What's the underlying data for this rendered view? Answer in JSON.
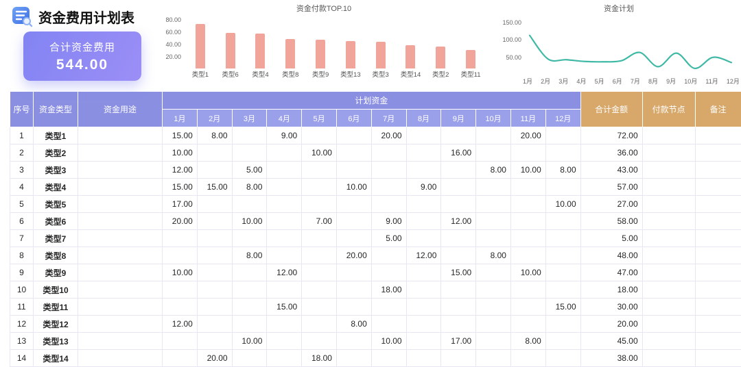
{
  "page": {
    "title": "资金费用计划表"
  },
  "summary_card": {
    "label": "合计资金费用",
    "value": "544.00"
  },
  "colors": {
    "bar": "#f0a49a",
    "line": "#3fb9a5",
    "header_purple": "#8a8fe2",
    "header_month": "#9ba0ea",
    "header_tan": "#d7a86a",
    "card_gradient_start": "#8284f3",
    "card_gradient_end": "#9c8ef6"
  },
  "chart_data": [
    {
      "type": "bar",
      "title": "资金付款TOP.10",
      "categories": [
        "类型1",
        "类型6",
        "类型4",
        "类型8",
        "类型9",
        "类型13",
        "类型3",
        "类型14",
        "类型2",
        "类型11"
      ],
      "values": [
        72,
        58,
        57,
        48,
        47,
        45,
        43,
        38,
        36,
        30
      ],
      "y_ticks": [
        "80.00",
        "60.00",
        "40.00",
        "20.00"
      ],
      "ylim": [
        0,
        80
      ],
      "xlabel": "",
      "ylabel": "",
      "legend": "none",
      "grid": false
    },
    {
      "type": "line",
      "title": "资金计划",
      "x": [
        "1月",
        "2月",
        "3月",
        "4月",
        "5月",
        "6月",
        "7月",
        "8月",
        "9月",
        "10月",
        "11月",
        "12月"
      ],
      "values": [
        111,
        43,
        41,
        36,
        35,
        38,
        62,
        21,
        60,
        16,
        48,
        33
      ],
      "y_ticks": [
        "150.00",
        "100.00",
        "50.00"
      ],
      "ylim": [
        0,
        150
      ],
      "xlabel": "",
      "ylabel": "",
      "legend": "none",
      "grid": false
    }
  ],
  "table": {
    "header": {
      "no": "序号",
      "type": "资金类型",
      "purpose": "资金用途",
      "plan_group": "计划资金",
      "months": [
        "1月",
        "2月",
        "3月",
        "4月",
        "5月",
        "6月",
        "7月",
        "8月",
        "9月",
        "10月",
        "11月",
        "12月"
      ],
      "total": "合计金额",
      "node": "付款节点",
      "note": "备注"
    },
    "rows": [
      {
        "no": "1",
        "type": "类型1",
        "purpose": "",
        "months": [
          "15.00",
          "8.00",
          "",
          "9.00",
          "",
          "",
          "20.00",
          "",
          "",
          "",
          "20.00",
          ""
        ],
        "total": "72.00",
        "node": "",
        "note": ""
      },
      {
        "no": "2",
        "type": "类型2",
        "purpose": "",
        "months": [
          "10.00",
          "",
          "",
          "",
          "10.00",
          "",
          "",
          "",
          "16.00",
          "",
          "",
          ""
        ],
        "total": "36.00",
        "node": "",
        "note": ""
      },
      {
        "no": "3",
        "type": "类型3",
        "purpose": "",
        "months": [
          "12.00",
          "",
          "5.00",
          "",
          "",
          "",
          "",
          "",
          "",
          "8.00",
          "10.00",
          "8.00"
        ],
        "total": "43.00",
        "node": "",
        "note": ""
      },
      {
        "no": "4",
        "type": "类型4",
        "purpose": "",
        "months": [
          "15.00",
          "15.00",
          "8.00",
          "",
          "",
          "10.00",
          "",
          "9.00",
          "",
          "",
          "",
          ""
        ],
        "total": "57.00",
        "node": "",
        "note": ""
      },
      {
        "no": "5",
        "type": "类型5",
        "purpose": "",
        "months": [
          "17.00",
          "",
          "",
          "",
          "",
          "",
          "",
          "",
          "",
          "",
          "",
          "10.00"
        ],
        "total": "27.00",
        "node": "",
        "note": ""
      },
      {
        "no": "6",
        "type": "类型6",
        "purpose": "",
        "months": [
          "20.00",
          "",
          "10.00",
          "",
          "7.00",
          "",
          "9.00",
          "",
          "12.00",
          "",
          "",
          ""
        ],
        "total": "58.00",
        "node": "",
        "note": ""
      },
      {
        "no": "7",
        "type": "类型7",
        "purpose": "",
        "months": [
          "",
          "",
          "",
          "",
          "",
          "",
          "5.00",
          "",
          "",
          "",
          "",
          ""
        ],
        "total": "5.00",
        "node": "",
        "note": ""
      },
      {
        "no": "8",
        "type": "类型8",
        "purpose": "",
        "months": [
          "",
          "",
          "8.00",
          "",
          "",
          "20.00",
          "",
          "12.00",
          "",
          "8.00",
          "",
          ""
        ],
        "total": "48.00",
        "node": "",
        "note": ""
      },
      {
        "no": "9",
        "type": "类型9",
        "purpose": "",
        "months": [
          "10.00",
          "",
          "",
          "12.00",
          "",
          "",
          "",
          "",
          "15.00",
          "",
          "10.00",
          ""
        ],
        "total": "47.00",
        "node": "",
        "note": ""
      },
      {
        "no": "10",
        "type": "类型10",
        "purpose": "",
        "months": [
          "",
          "",
          "",
          "",
          "",
          "",
          "18.00",
          "",
          "",
          "",
          "",
          ""
        ],
        "total": "18.00",
        "node": "",
        "note": ""
      },
      {
        "no": "11",
        "type": "类型11",
        "purpose": "",
        "months": [
          "",
          "",
          "",
          "15.00",
          "",
          "",
          "",
          "",
          "",
          "",
          "",
          "15.00"
        ],
        "total": "30.00",
        "node": "",
        "note": ""
      },
      {
        "no": "12",
        "type": "类型12",
        "purpose": "",
        "months": [
          "12.00",
          "",
          "",
          "",
          "",
          "8.00",
          "",
          "",
          "",
          "",
          "",
          ""
        ],
        "total": "20.00",
        "node": "",
        "note": ""
      },
      {
        "no": "13",
        "type": "类型13",
        "purpose": "",
        "months": [
          "",
          "",
          "10.00",
          "",
          "",
          "",
          "10.00",
          "",
          "17.00",
          "",
          "8.00",
          ""
        ],
        "total": "45.00",
        "node": "",
        "note": ""
      },
      {
        "no": "14",
        "type": "类型14",
        "purpose": "",
        "months": [
          "",
          "20.00",
          "",
          "",
          "18.00",
          "",
          "",
          "",
          "",
          "",
          "",
          ""
        ],
        "total": "38.00",
        "node": "",
        "note": ""
      }
    ]
  }
}
